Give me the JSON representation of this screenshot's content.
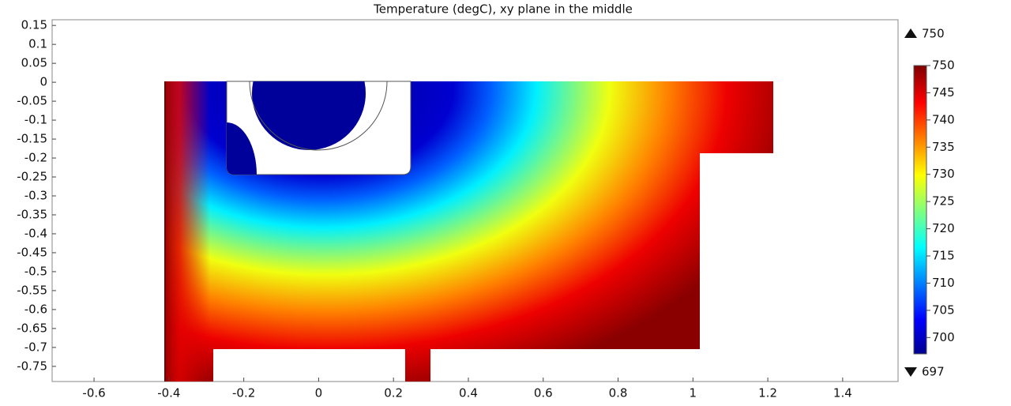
{
  "chart_data": {
    "type": "surface",
    "title": "Temperature (degC),  xy plane in the middle",
    "colormap": "jet",
    "xlim": [
      -0.712,
      1.548
    ],
    "ylim": [
      -0.79,
      0.165
    ],
    "xticks": [
      -0.6,
      -0.4,
      -0.2,
      0,
      0.2,
      0.4,
      0.6,
      0.8,
      1,
      1.2,
      1.4
    ],
    "yticks": [
      0.15,
      0.1,
      0.05,
      0,
      -0.05,
      -0.1,
      -0.15,
      -0.2,
      -0.25,
      -0.3,
      -0.35,
      -0.4,
      -0.45,
      -0.5,
      -0.55,
      -0.6,
      -0.65,
      -0.7,
      -0.75
    ],
    "clim": [
      697,
      750
    ],
    "cticks": [
      700,
      705,
      710,
      715,
      720,
      725,
      730,
      735,
      740,
      745,
      750
    ],
    "max": 750,
    "min": 697
  }
}
